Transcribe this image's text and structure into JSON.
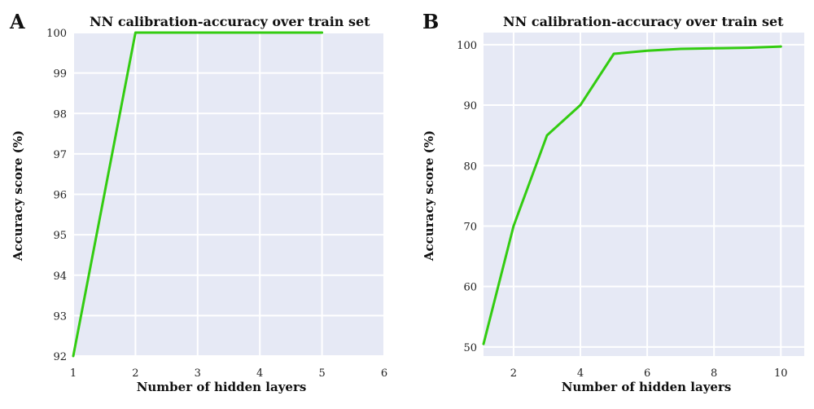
{
  "chart_data": [
    {
      "panel": "A",
      "type": "line",
      "title": "NN calibration-accuracy over train set",
      "xlabel": "Number of hidden layers",
      "ylabel": "Accuracy score (%)",
      "xlim": [
        1,
        6
      ],
      "ylim": [
        92,
        100
      ],
      "xticks": [
        1,
        2,
        3,
        4,
        5,
        6
      ],
      "yticks": [
        92,
        93,
        94,
        95,
        96,
        97,
        98,
        99,
        100
      ],
      "grid": true,
      "series": [
        {
          "x": [
            1,
            2,
            3,
            4,
            5
          ],
          "y": [
            92,
            100,
            100,
            100,
            100
          ]
        }
      ],
      "colors": {
        "line": "#33cc11",
        "plot_background": "#e6e9f5",
        "grid": "#ffffff"
      }
    },
    {
      "panel": "B",
      "type": "line",
      "title": "NN calibration-accuracy over train set",
      "xlabel": "Number of hidden layers",
      "ylabel": "Accuracy score (%)",
      "xlim": [
        1.1,
        10.7
      ],
      "ylim": [
        48.5,
        102
      ],
      "xticks": [
        2,
        4,
        6,
        8,
        10
      ],
      "yticks": [
        50,
        60,
        70,
        80,
        90,
        100
      ],
      "grid": true,
      "series": [
        {
          "x": [
            1.1,
            2,
            3,
            4,
            5,
            6,
            7,
            8,
            9,
            10
          ],
          "y": [
            50.5,
            70,
            85,
            90,
            98.5,
            99,
            99.3,
            99.4,
            99.5,
            99.7
          ]
        }
      ],
      "colors": {
        "line": "#33cc11",
        "plot_background": "#e6e9f5",
        "grid": "#ffffff"
      }
    }
  ]
}
